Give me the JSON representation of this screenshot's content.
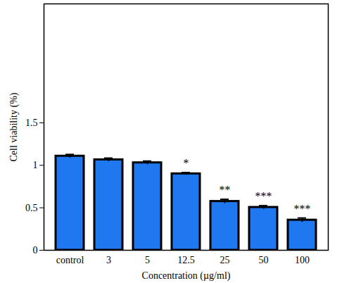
{
  "chart_data": {
    "type": "bar",
    "categories": [
      "control",
      "3",
      "5",
      "12.5",
      "25",
      "50",
      "100"
    ],
    "values": [
      1.108,
      1.065,
      1.03,
      0.9,
      0.575,
      0.505,
      0.355
    ],
    "errors": [
      0.02,
      0.02,
      0.02,
      0.015,
      0.025,
      0.02,
      0.025
    ],
    "significance": [
      null,
      null,
      null,
      "*",
      "**",
      "***",
      "***"
    ],
    "color": "#1f78f0",
    "x_label": "Concentration (µg/ml)",
    "y_label": "Cell viability (%)",
    "ylim": [
      0,
      2.9
    ],
    "yticks": [
      0,
      0.5,
      1,
      1.5
    ],
    "grid": false
  }
}
